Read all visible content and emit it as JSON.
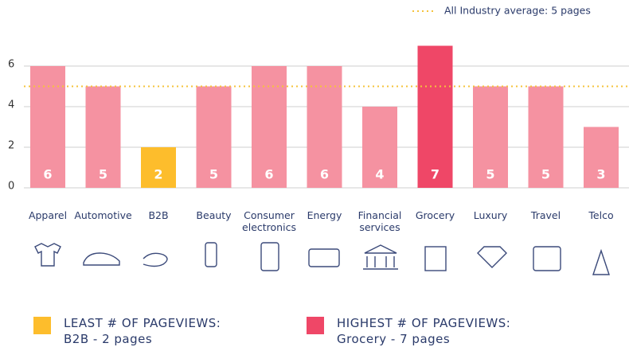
{
  "chart_data": {
    "type": "bar",
    "categories": [
      "Apparel",
      "Automotive",
      "B2B",
      "Beauty",
      "Consumer electronics",
      "Energy",
      "Financial services",
      "Grocery",
      "Luxury",
      "Travel",
      "Telco"
    ],
    "values": [
      6,
      5,
      2,
      5,
      6,
      6,
      4,
      7,
      5,
      5,
      3
    ],
    "colors": [
      "#f592a1",
      "#f592a1",
      "#fdbd2c",
      "#f592a1",
      "#f592a1",
      "#f592a1",
      "#f592a1",
      "#ef4767",
      "#f592a1",
      "#f592a1",
      "#f592a1"
    ],
    "ylim": [
      0,
      8
    ],
    "yticks": [
      0,
      2,
      4,
      6
    ],
    "grid": true,
    "average": {
      "value": 5,
      "label": "All Industry average: 5 pages",
      "color": "#f5c33b"
    },
    "callouts": [
      {
        "title": "LEAST # OF PAGEVIEWS:",
        "text": "B2B - 2 pages",
        "color": "#fdbd2c"
      },
      {
        "title": "HIGHEST # OF PAGEVIEWS:",
        "text": "Grocery - 7 pages",
        "color": "#ef4767"
      }
    ]
  }
}
